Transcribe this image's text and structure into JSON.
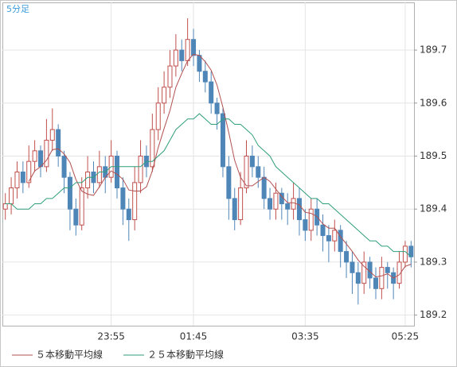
{
  "chart_data": {
    "type": "candlestick",
    "title": "5分足",
    "categories": [
      null,
      null,
      null,
      null,
      null,
      null,
      null,
      null,
      null,
      null,
      null,
      null,
      null,
      null,
      null,
      null,
      null,
      null,
      "23:55",
      null,
      null,
      null,
      null,
      null,
      null,
      null,
      null,
      null,
      null,
      null,
      null,
      null,
      "01:45",
      null,
      null,
      null,
      null,
      null,
      null,
      null,
      null,
      null,
      null,
      null,
      null,
      null,
      null,
      null,
      null,
      null,
      null,
      "03:35",
      null,
      null,
      null,
      null,
      null,
      null,
      null,
      null,
      null,
      null,
      null,
      null,
      null,
      null,
      null,
      null,
      "05:25",
      null
    ],
    "open": [
      189.4,
      189.41,
      189.44,
      189.47,
      189.45,
      189.49,
      189.51,
      189.48,
      189.53,
      189.55,
      189.5,
      189.46,
      189.4,
      189.37,
      189.44,
      189.47,
      189.45,
      189.48,
      189.46,
      189.5,
      189.44,
      189.4,
      189.38,
      189.45,
      189.5,
      189.48,
      189.55,
      189.6,
      189.63,
      189.67,
      189.7,
      189.68,
      189.72,
      189.69,
      189.66,
      189.64,
      189.6,
      189.58,
      189.48,
      189.42,
      189.38,
      189.44,
      189.5,
      189.48,
      189.46,
      189.42,
      189.4,
      189.43,
      189.41,
      189.4,
      189.42,
      189.38,
      189.36,
      189.4,
      189.37,
      189.35,
      189.34,
      189.36,
      189.32,
      189.3,
      189.28,
      189.26,
      189.3,
      189.27,
      189.25,
      189.29,
      189.28,
      189.26,
      189.3,
      189.33
    ],
    "high": [
      189.43,
      189.46,
      189.49,
      189.49,
      189.52,
      189.53,
      189.52,
      189.57,
      189.59,
      189.56,
      189.51,
      189.47,
      189.42,
      189.46,
      189.5,
      189.49,
      189.51,
      189.5,
      189.53,
      189.51,
      189.46,
      189.42,
      189.48,
      189.53,
      189.52,
      189.58,
      189.63,
      189.66,
      189.7,
      189.73,
      189.72,
      189.76,
      189.74,
      189.7,
      189.68,
      189.66,
      189.61,
      189.59,
      189.5,
      189.44,
      189.47,
      189.53,
      189.52,
      189.5,
      189.48,
      189.44,
      189.45,
      189.44,
      189.43,
      189.45,
      189.44,
      189.4,
      189.42,
      189.42,
      189.39,
      189.37,
      189.38,
      189.37,
      189.34,
      189.32,
      189.3,
      189.32,
      189.31,
      189.29,
      189.31,
      189.3,
      189.29,
      189.32,
      189.34,
      189.34
    ],
    "low": [
      189.38,
      189.39,
      189.42,
      189.43,
      189.44,
      189.47,
      189.46,
      189.47,
      189.51,
      189.48,
      189.43,
      189.36,
      189.35,
      189.36,
      189.42,
      189.43,
      189.44,
      189.43,
      189.45,
      189.42,
      189.37,
      189.34,
      189.36,
      189.43,
      189.46,
      189.47,
      189.53,
      189.58,
      189.61,
      189.65,
      189.66,
      189.67,
      189.67,
      189.64,
      189.62,
      189.58,
      189.55,
      189.46,
      189.38,
      189.36,
      189.37,
      189.43,
      189.46,
      189.44,
      189.4,
      189.38,
      189.38,
      189.38,
      189.37,
      189.38,
      189.35,
      189.34,
      189.34,
      189.35,
      189.32,
      189.3,
      189.32,
      189.29,
      189.27,
      189.24,
      189.22,
      189.24,
      189.25,
      189.23,
      189.23,
      189.25,
      189.23,
      189.25,
      189.29,
      189.29
    ],
    "close": [
      189.41,
      189.44,
      189.47,
      189.45,
      189.49,
      189.51,
      189.48,
      189.53,
      189.55,
      189.5,
      189.46,
      189.4,
      189.37,
      189.44,
      189.47,
      189.45,
      189.48,
      189.46,
      189.5,
      189.44,
      189.4,
      189.38,
      189.45,
      189.5,
      189.48,
      189.55,
      189.6,
      189.63,
      189.67,
      189.7,
      189.68,
      189.72,
      189.69,
      189.66,
      189.64,
      189.6,
      189.58,
      189.48,
      189.42,
      189.38,
      189.44,
      189.5,
      189.48,
      189.46,
      189.42,
      189.4,
      189.43,
      189.41,
      189.4,
      189.42,
      189.38,
      189.36,
      189.4,
      189.37,
      189.35,
      189.34,
      189.36,
      189.32,
      189.3,
      189.28,
      189.26,
      189.3,
      189.27,
      189.25,
      189.29,
      189.28,
      189.26,
      189.3,
      189.33,
      189.31
    ],
    "up_color": "#c0504d",
    "down_color": "#4f86b8",
    "series": [
      {
        "name": "５本移動平均線",
        "color": "#b25050",
        "values": [
          null,
          null,
          null,
          null,
          189.452,
          189.472,
          189.48,
          189.492,
          189.512,
          189.514,
          189.504,
          189.488,
          189.456,
          189.434,
          189.428,
          189.426,
          189.442,
          189.46,
          189.472,
          189.466,
          189.456,
          189.436,
          189.434,
          189.434,
          189.442,
          189.472,
          189.516,
          189.552,
          189.586,
          189.63,
          189.656,
          189.68,
          189.692,
          189.69,
          189.678,
          189.662,
          189.634,
          189.592,
          189.544,
          189.492,
          189.46,
          189.444,
          189.444,
          189.452,
          189.46,
          189.452,
          189.438,
          189.424,
          189.412,
          189.412,
          189.408,
          189.394,
          189.392,
          189.386,
          189.372,
          189.364,
          189.364,
          189.348,
          189.334,
          189.32,
          189.304,
          189.292,
          189.282,
          189.272,
          189.274,
          189.278,
          189.27,
          189.276,
          189.292,
          189.296
        ]
      },
      {
        "name": "２５本移動平均線",
        "color": "#2f9e7c",
        "values": [
          189.41,
          189.41,
          189.4,
          189.4,
          189.4,
          189.41,
          189.41,
          189.42,
          189.42,
          189.43,
          189.44,
          189.44,
          189.45,
          189.45,
          189.46,
          189.46,
          189.47,
          189.47,
          189.48,
          189.48,
          189.48,
          189.48,
          189.48,
          189.48,
          189.49,
          189.49,
          189.5,
          189.51,
          189.53,
          189.55,
          189.56,
          189.57,
          189.57,
          189.58,
          189.57,
          189.56,
          189.56,
          189.57,
          189.57,
          189.56,
          189.56,
          189.55,
          189.54,
          189.52,
          189.51,
          189.5,
          189.48,
          189.47,
          189.46,
          189.45,
          189.44,
          189.43,
          189.42,
          189.42,
          189.41,
          189.41,
          189.4,
          189.39,
          189.38,
          189.37,
          189.36,
          189.35,
          189.34,
          189.34,
          189.33,
          189.33,
          189.32,
          189.32,
          189.32,
          189.31
        ]
      }
    ],
    "ylim": [
      189.18,
      189.79
    ],
    "yticks": [
      189.2,
      189.3,
      189.4,
      189.5,
      189.6,
      189.7
    ],
    "grid": true
  }
}
